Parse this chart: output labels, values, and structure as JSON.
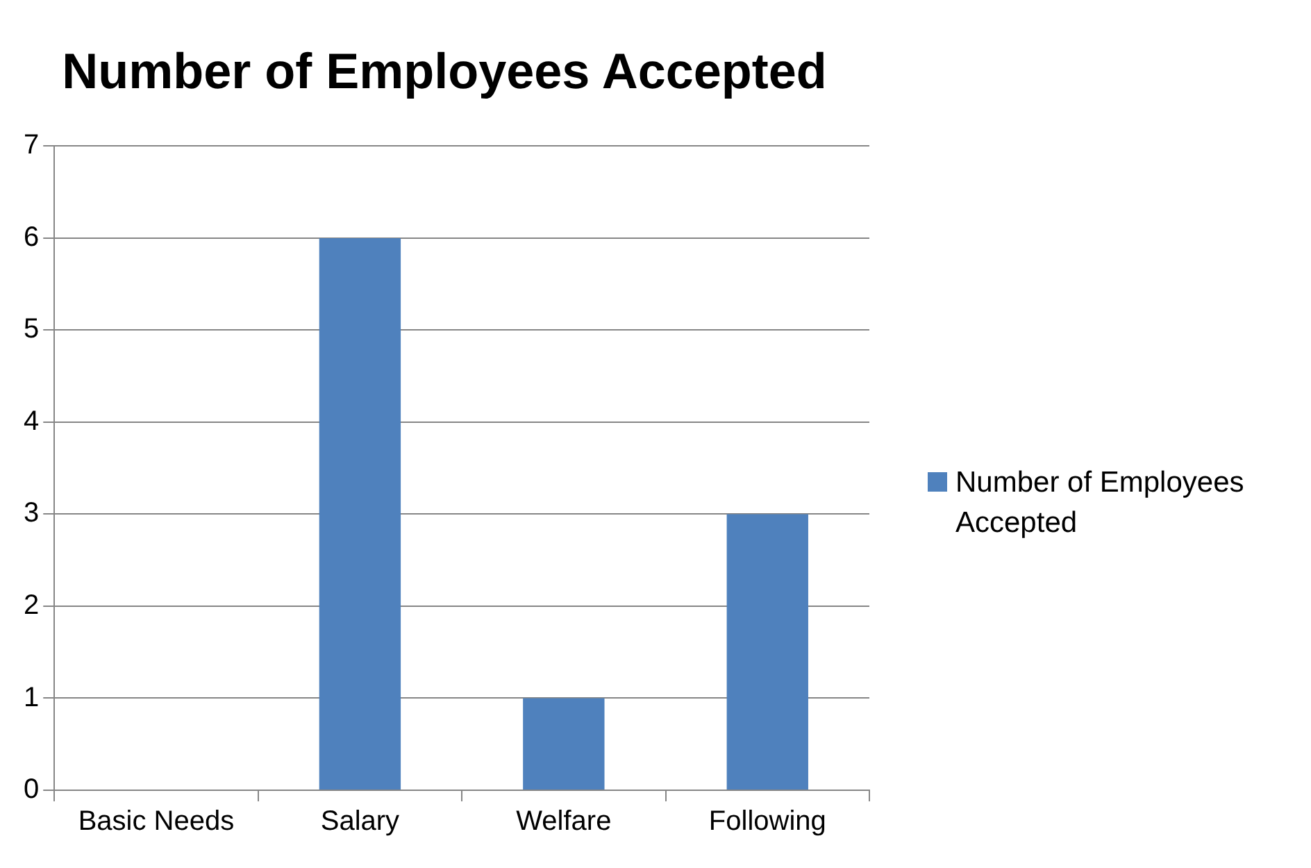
{
  "chart_data": {
    "type": "bar",
    "title": "Number of Employees Accepted",
    "categories": [
      "Basic Needs",
      "Salary",
      "Welfare",
      "Following"
    ],
    "series": [
      {
        "name": "Number of Employees Accepted",
        "color": "#4f81bd",
        "values": [
          0,
          6,
          1,
          3
        ]
      }
    ],
    "ylim": [
      0,
      7
    ],
    "yticks": [
      0,
      1,
      2,
      3,
      4,
      5,
      6,
      7
    ],
    "grid": "y",
    "legend": "right"
  }
}
